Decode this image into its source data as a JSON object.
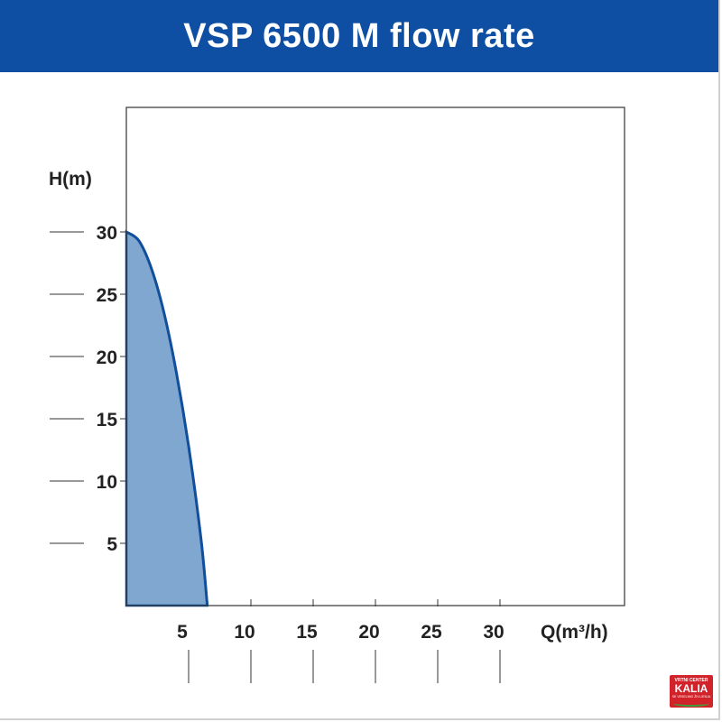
{
  "header": {
    "title": "VSP 6500 M flow rate"
  },
  "colors": {
    "header_bg": "#0f4fa3",
    "fill": "#7fa7d0",
    "curve": "#114f9c"
  },
  "chart_data": {
    "type": "area",
    "title": "VSP 6500 M flow rate",
    "xlabel": "Q(m³/h)",
    "ylabel": "H(m)",
    "xlim": [
      0,
      40
    ],
    "ylim": [
      0,
      40
    ],
    "xticks": [
      5,
      10,
      15,
      20,
      25,
      30
    ],
    "yticks": [
      5,
      10,
      15,
      20,
      25,
      30
    ],
    "grid": false,
    "series": [
      {
        "x": [
          0,
          1,
          2,
          3,
          4,
          5,
          6,
          6.5
        ],
        "y": [
          30,
          29.3,
          27.1,
          23.6,
          18.8,
          12.8,
          5.3,
          0
        ]
      }
    ]
  },
  "logo": {
    "line1": "VRTNI CENTER",
    "line2": "KALIA",
    "line3": "SE VESELIMO ŽIVLJENJA"
  }
}
